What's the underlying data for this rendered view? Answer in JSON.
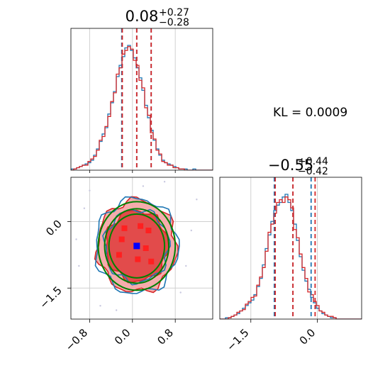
{
  "chart_data": [
    {
      "type": "histogram",
      "panel": "top-left",
      "parameter_index": 0,
      "title": {
        "value": "0.08",
        "plus": "+0.27",
        "minus": "−0.28"
      },
      "xlim": [
        -1.15,
        1.5
      ],
      "grid": true,
      "quantile_lines": {
        "blue": [
          -0.2,
          0.08,
          0.35
        ],
        "red": [
          -0.19,
          0.08,
          0.35
        ]
      },
      "bin_edges_start": -1.15,
      "bin_width": 0.053,
      "series": [
        {
          "name": "",
          "color": "#1f77b4",
          "counts": [
            0.01,
            0.01,
            0.02,
            0.03,
            0.04,
            0.05,
            0.06,
            0.08,
            0.12,
            0.17,
            0.23,
            0.29,
            0.34,
            0.45,
            0.54,
            0.63,
            0.75,
            0.84,
            0.91,
            0.98,
            1.0,
            0.96,
            0.9,
            0.82,
            0.74,
            0.64,
            0.52,
            0.42,
            0.32,
            0.24,
            0.17,
            0.12,
            0.08,
            0.06,
            0.05,
            0.04,
            0.03,
            0.02,
            0.01,
            0.01,
            0.01,
            0.0,
            0.0,
            0.01,
            0.0,
            0.0,
            0.0,
            0.0,
            0.0,
            0.0
          ]
        },
        {
          "name": "",
          "color": "#d62728",
          "counts": [
            0.0,
            0.01,
            0.02,
            0.03,
            0.04,
            0.04,
            0.07,
            0.09,
            0.11,
            0.16,
            0.24,
            0.27,
            0.35,
            0.43,
            0.55,
            0.62,
            0.77,
            0.82,
            0.93,
            0.96,
            0.99,
            0.97,
            0.88,
            0.84,
            0.72,
            0.66,
            0.5,
            0.44,
            0.3,
            0.25,
            0.16,
            0.13,
            0.07,
            0.06,
            0.04,
            0.04,
            0.02,
            0.02,
            0.01,
            0.01,
            0.0,
            0.0,
            0.0,
            0.0,
            0.0,
            0.0,
            0.0,
            0.0,
            0.0,
            0.0
          ]
        }
      ]
    },
    {
      "type": "contour",
      "panel": "bottom-left",
      "x_parameter_index": 0,
      "y_parameter_index": 1,
      "xlim": [
        -1.15,
        1.5
      ],
      "ylim": [
        -2.2,
        1.0
      ],
      "xticks": [
        "−0.8",
        "0.0",
        "0.8"
      ],
      "xtick_values": [
        -0.8,
        0.0,
        0.8
      ],
      "yticks": [
        "0.0",
        "−1.5"
      ],
      "ytick_values": [
        0.0,
        -1.5
      ],
      "grid": true,
      "point_estimate": {
        "x": 0.08,
        "y": -0.55,
        "color": "#0000ff"
      },
      "contour_levels": [
        {
          "color": "#d62728",
          "fill": "#f4a3a3",
          "rx": 0.74,
          "ry": 1.04
        },
        {
          "color": "#1f77b4",
          "fill": "none",
          "rx": 0.77,
          "ry": 1.07
        },
        {
          "color": "#d62728",
          "fill": "#e04040",
          "rx": 0.58,
          "ry": 0.8
        },
        {
          "color": "#1f77b4",
          "fill": "none",
          "rx": 0.6,
          "ry": 0.82
        }
      ],
      "gaussian_fit": {
        "color": "#008000",
        "ellipses": [
          {
            "rx": 0.72,
            "ry": 1.0
          },
          {
            "rx": 0.6,
            "ry": 0.84
          },
          {
            "rx": 0.52,
            "ry": 0.72
          }
        ]
      }
    },
    {
      "type": "histogram",
      "panel": "bottom-right",
      "parameter_index": 1,
      "title": {
        "value": "−0.55",
        "plus": "+0.44",
        "minus": "−0.42"
      },
      "xlim": [
        -2.2,
        1.0
      ],
      "xticks": [
        "−1.5",
        "0.0"
      ],
      "xtick_values": [
        -1.5,
        0.0
      ],
      "grid": true,
      "quantile_lines": {
        "blue": [
          -0.97,
          -0.55,
          -0.14
        ],
        "red": [
          -0.95,
          -0.55,
          -0.05
        ]
      },
      "bin_edges_start": -2.2,
      "bin_width": 0.064,
      "series": [
        {
          "name": "",
          "color": "#1f77b4",
          "counts": [
            0.0,
            0.0,
            0.01,
            0.01,
            0.02,
            0.03,
            0.04,
            0.06,
            0.08,
            0.1,
            0.12,
            0.14,
            0.18,
            0.24,
            0.3,
            0.4,
            0.52,
            0.62,
            0.72,
            0.8,
            0.84,
            0.86,
            0.9,
            0.92,
            0.86,
            0.8,
            0.7,
            0.58,
            0.46,
            0.36,
            0.28,
            0.22,
            0.16,
            0.12,
            0.08,
            0.06,
            0.04,
            0.03,
            0.02,
            0.01,
            0.01,
            0.0,
            0.0,
            0.0,
            0.0,
            0.0,
            0.0,
            0.0,
            0.0,
            0.0
          ]
        },
        {
          "name": "",
          "color": "#d62728",
          "counts": [
            0.0,
            0.0,
            0.0,
            0.01,
            0.02,
            0.03,
            0.05,
            0.06,
            0.07,
            0.11,
            0.13,
            0.16,
            0.17,
            0.25,
            0.31,
            0.38,
            0.5,
            0.64,
            0.7,
            0.78,
            0.86,
            0.88,
            0.86,
            0.9,
            0.88,
            0.82,
            0.66,
            0.6,
            0.48,
            0.38,
            0.3,
            0.2,
            0.18,
            0.13,
            0.1,
            0.06,
            0.05,
            0.03,
            0.02,
            0.02,
            0.01,
            0.0,
            0.0,
            0.0,
            0.0,
            0.0,
            0.0,
            0.0,
            0.0,
            0.0
          ]
        }
      ]
    }
  ],
  "annotation": {
    "kl_text": "KL = 0.0009"
  }
}
